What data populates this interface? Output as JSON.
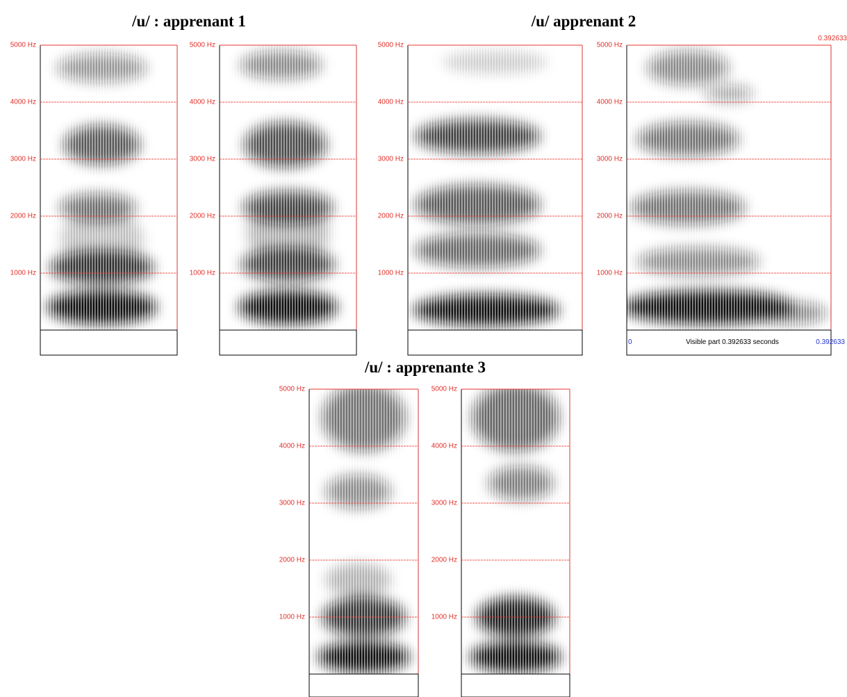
{
  "titles": [
    "/u/ : apprenant 1",
    "/u/ apprenant 2",
    "/u/ : apprenante 3"
  ],
  "panels": [
    {
      "ylim": [
        0,
        5000
      ],
      "yticks": [
        {
          "value": 5000,
          "label": "5000 Hz"
        },
        {
          "value": 4000,
          "label": "4000 Hz"
        },
        {
          "value": 3000,
          "label": "3000 Hz"
        },
        {
          "value": 2000,
          "label": "2000 Hz"
        },
        {
          "value": 1000,
          "label": "1000 Hz"
        }
      ]
    },
    {
      "ylim": [
        0,
        5000
      ],
      "yticks": [
        {
          "value": 5000,
          "label": "5000 Hz"
        },
        {
          "value": 4000,
          "label": "4000 Hz"
        },
        {
          "value": 3000,
          "label": "3000 Hz"
        },
        {
          "value": 2000,
          "label": "2000 Hz"
        },
        {
          "value": 1000,
          "label": "1000 Hz"
        }
      ]
    },
    {
      "ylim": [
        0,
        5000
      ],
      "yticks": [
        {
          "value": 5000,
          "label": "5000 Hz"
        },
        {
          "value": 4000,
          "label": "4000 Hz"
        },
        {
          "value": 3000,
          "label": "3000 Hz"
        },
        {
          "value": 2000,
          "label": "2000 Hz"
        },
        {
          "value": 1000,
          "label": "1000 Hz"
        }
      ]
    },
    {
      "ylim": [
        0,
        5000
      ],
      "yticks": [
        {
          "value": 5000,
          "label": "5000 Hz"
        },
        {
          "value": 4000,
          "label": "4000 Hz"
        },
        {
          "value": 3000,
          "label": "3000 Hz"
        },
        {
          "value": 2000,
          "label": "2000 Hz"
        },
        {
          "value": 1000,
          "label": "1000 Hz"
        }
      ],
      "annotations": {
        "top_right": "0.392633",
        "left": "0",
        "center": "Visible part 0.392633 seconds",
        "right": "0.392633"
      }
    },
    {
      "ylim": [
        0,
        5000
      ],
      "yticks": [
        {
          "value": 5000,
          "label": "5000 Hz"
        },
        {
          "value": 4000,
          "label": "4000 Hz"
        },
        {
          "value": 3000,
          "label": "3000 Hz"
        },
        {
          "value": 2000,
          "label": "2000 Hz"
        },
        {
          "value": 1000,
          "label": "1000 Hz"
        }
      ]
    },
    {
      "ylim": [
        0,
        5000
      ],
      "yticks": [
        {
          "value": 5000,
          "label": "5000 Hz"
        },
        {
          "value": 4000,
          "label": "4000 Hz"
        },
        {
          "value": 3000,
          "label": "3000 Hz"
        },
        {
          "value": 2000,
          "label": "2000 Hz"
        },
        {
          "value": 1000,
          "label": "1000 Hz"
        }
      ]
    }
  ]
}
